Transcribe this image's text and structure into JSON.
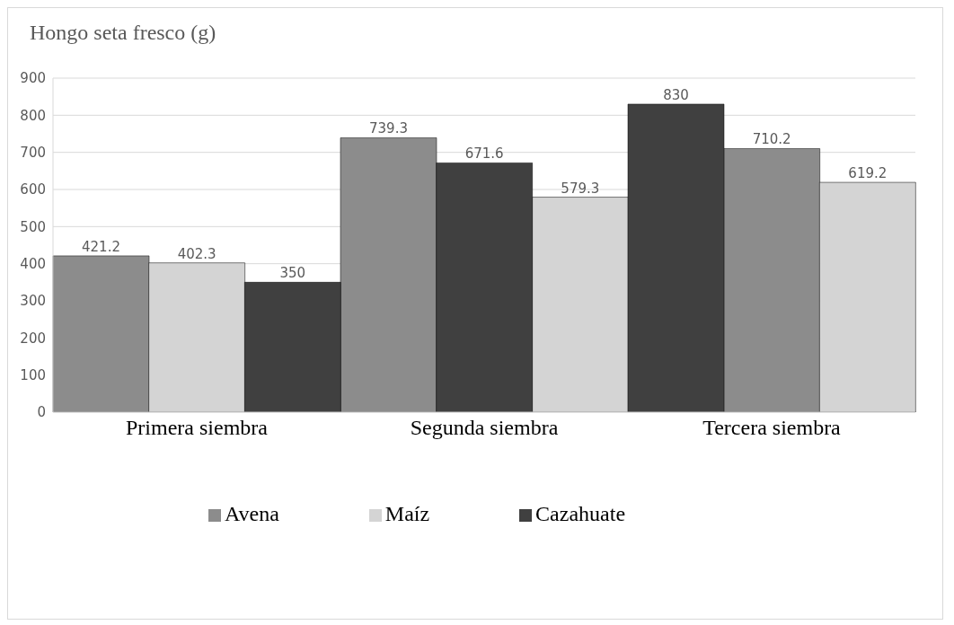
{
  "chart_data": {
    "type": "bar",
    "title": "Hongo seta fresco (g)",
    "stacked": true,
    "categories": [
      null,
      "Primera siembra",
      null,
      null,
      "Segunda siembra",
      null,
      null,
      "Tercera siembra",
      null
    ],
    "series": [
      {
        "name": "Avena",
        "color": "#8c8c8c",
        "values": [
          421.2,
          null,
          null,
          739.3,
          null,
          null,
          null,
          710.2,
          null
        ]
      },
      {
        "name": "Maíz",
        "color": "#d4d4d4",
        "values": [
          null,
          402.3,
          null,
          null,
          null,
          579.3,
          null,
          null,
          619.2
        ]
      },
      {
        "name": "Cazahuate",
        "color": "#404040",
        "values": [
          null,
          null,
          350,
          null,
          671.6,
          null,
          830,
          null,
          null
        ]
      }
    ],
    "ylim": [
      0,
      900
    ],
    "yticks": [
      0,
      100,
      200,
      300,
      400,
      500,
      600,
      700,
      800,
      900
    ],
    "grid": "y",
    "legend": "bottom",
    "data_labels": true
  }
}
